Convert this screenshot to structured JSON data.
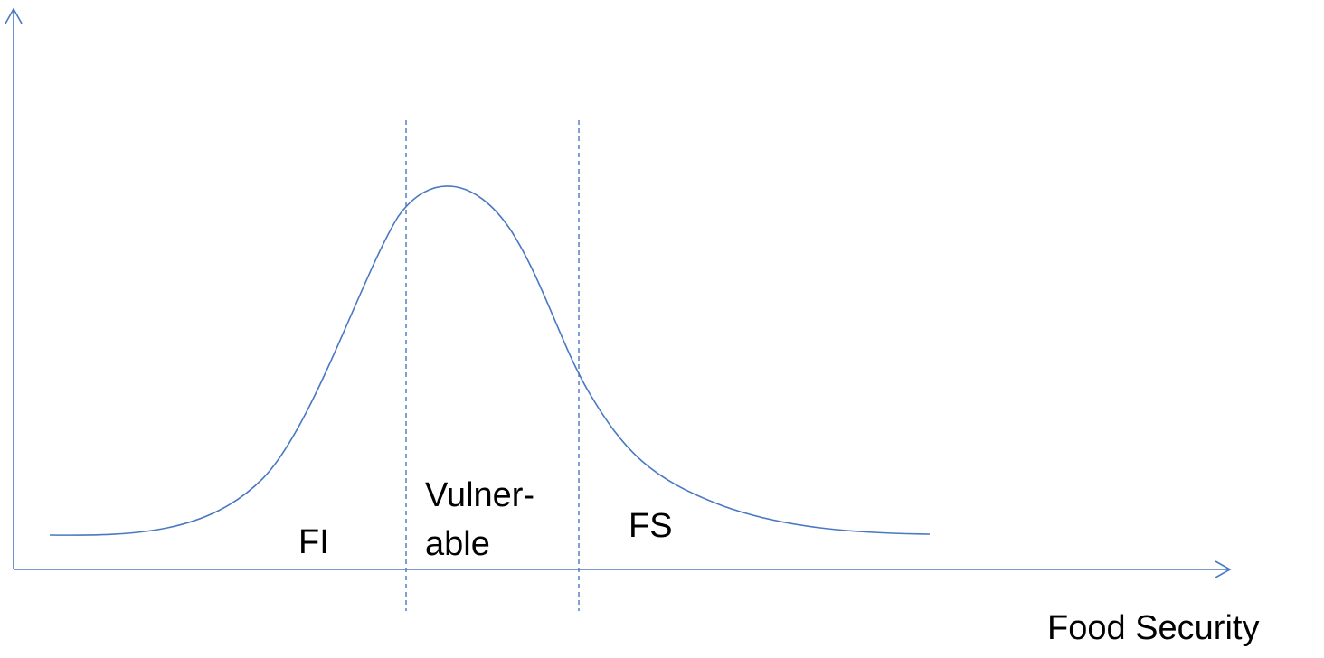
{
  "regions": {
    "food_insecure": "FI",
    "vulnerable": [
      "Vulner-",
      "able"
    ],
    "food_secure": "FS"
  },
  "axis": {
    "x_label": "Food Security"
  }
}
